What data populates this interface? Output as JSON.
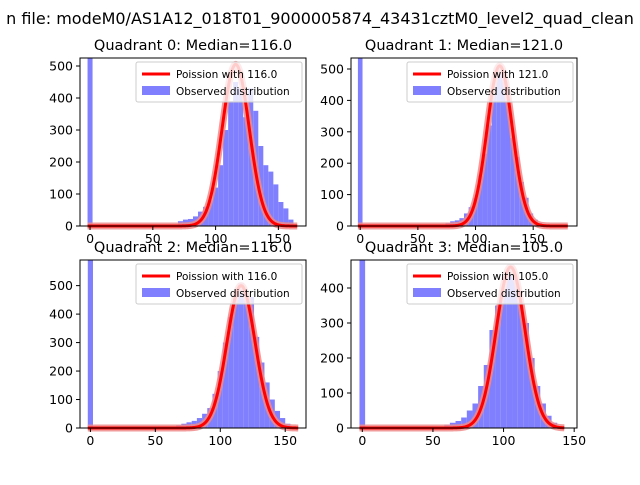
{
  "figure_title": "n file: modeM0/AS1A12_018T01_9000005874_43431cztM0_level2_quad_clean",
  "colors": {
    "hist": "#8080ff",
    "poisson": "#ff0000",
    "poisson_overlap": "#f08a8a"
  },
  "chart_data": [
    {
      "type": "bar",
      "title": "Quadrant 0: Median=116.0",
      "xlim": [
        -8,
        172
      ],
      "ylim": [
        0,
        525
      ],
      "xticks": [
        0,
        50,
        100,
        150
      ],
      "yticks": [
        0,
        100,
        200,
        300,
        400,
        500
      ],
      "legend_position": "top-right",
      "legend": [
        "Poission with 116.0",
        "Observed distribution"
      ],
      "bin_width": 4,
      "bins": [
        [
          -2,
          525
        ],
        [
          70,
          15
        ],
        [
          74,
          20
        ],
        [
          78,
          22
        ],
        [
          82,
          30
        ],
        [
          86,
          45
        ],
        [
          90,
          60
        ],
        [
          94,
          80
        ],
        [
          98,
          120
        ],
        [
          102,
          190
        ],
        [
          106,
          300
        ],
        [
          110,
          390
        ],
        [
          114,
          450
        ],
        [
          118,
          430
        ],
        [
          122,
          340
        ],
        [
          126,
          430
        ],
        [
          130,
          360
        ],
        [
          134,
          250
        ],
        [
          138,
          190
        ],
        [
          142,
          170
        ],
        [
          146,
          130
        ],
        [
          150,
          75
        ],
        [
          154,
          55
        ],
        [
          158,
          20
        ]
      ],
      "poisson_mean": 116.0,
      "poisson_peak": 505,
      "poisson_range": [
        -2,
        165
      ]
    },
    {
      "type": "bar",
      "title": "Quadrant 1: Median=121.0",
      "xlim": [
        -8,
        188
      ],
      "ylim": [
        0,
        535
      ],
      "xticks": [
        0,
        50,
        100,
        150
      ],
      "yticks": [
        0,
        100,
        200,
        300,
        400,
        500
      ],
      "legend_position": "top-right",
      "legend": [
        "Poission with 121.0",
        "Observed distribution"
      ],
      "bin_width": 4,
      "bins": [
        [
          -2,
          535
        ],
        [
          74,
          10
        ],
        [
          78,
          15
        ],
        [
          82,
          18
        ],
        [
          86,
          25
        ],
        [
          90,
          40
        ],
        [
          94,
          60
        ],
        [
          98,
          90
        ],
        [
          102,
          160
        ],
        [
          106,
          230
        ],
        [
          110,
          320
        ],
        [
          114,
          420
        ],
        [
          118,
          500
        ],
        [
          122,
          490
        ],
        [
          126,
          410
        ],
        [
          130,
          280
        ],
        [
          134,
          220
        ],
        [
          138,
          140
        ],
        [
          142,
          90
        ],
        [
          146,
          40
        ],
        [
          150,
          20
        ],
        [
          154,
          10
        ]
      ],
      "poisson_mean": 121.0,
      "poisson_peak": 510,
      "poisson_range": [
        -2,
        180
      ]
    },
    {
      "type": "bar",
      "title": "Quadrant 2: Median=116.0",
      "xlim": [
        -8,
        166
      ],
      "ylim": [
        0,
        590
      ],
      "xticks": [
        0,
        50,
        100,
        150
      ],
      "yticks": [
        0,
        100,
        200,
        300,
        400,
        500
      ],
      "legend_position": "top-right",
      "legend": [
        "Poission with 116.0",
        "Observed distribution"
      ],
      "bin_width": 4,
      "bins": [
        [
          -2,
          590
        ],
        [
          66,
          10
        ],
        [
          70,
          15
        ],
        [
          74,
          20
        ],
        [
          78,
          25
        ],
        [
          82,
          35
        ],
        [
          86,
          50
        ],
        [
          90,
          70
        ],
        [
          94,
          120
        ],
        [
          98,
          200
        ],
        [
          102,
          300
        ],
        [
          106,
          390
        ],
        [
          110,
          450
        ],
        [
          114,
          510
        ],
        [
          118,
          480
        ],
        [
          122,
          460
        ],
        [
          126,
          320
        ],
        [
          130,
          230
        ],
        [
          134,
          160
        ],
        [
          138,
          100
        ],
        [
          142,
          60
        ],
        [
          146,
          35
        ],
        [
          150,
          15
        ]
      ],
      "poisson_mean": 116.0,
      "poisson_peak": 500,
      "poisson_range": [
        -2,
        160
      ]
    },
    {
      "type": "bar",
      "title": "Quadrant 3: Median=105.0",
      "xlim": [
        -8,
        152
      ],
      "ylim": [
        0,
        480
      ],
      "xticks": [
        0,
        50,
        100,
        150
      ],
      "yticks": [
        0,
        100,
        200,
        300,
        400
      ],
      "legend_position": "top-right",
      "legend": [
        "Poission with 105.0",
        "Observed distribution"
      ],
      "bin_width": 4,
      "bins": [
        [
          -2,
          480
        ],
        [
          58,
          10
        ],
        [
          62,
          15
        ],
        [
          66,
          20
        ],
        [
          70,
          30
        ],
        [
          74,
          50
        ],
        [
          78,
          70
        ],
        [
          82,
          120
        ],
        [
          86,
          180
        ],
        [
          90,
          280
        ],
        [
          94,
          350
        ],
        [
          98,
          390
        ],
        [
          102,
          440
        ],
        [
          106,
          430
        ],
        [
          110,
          360
        ],
        [
          114,
          300
        ],
        [
          118,
          200
        ],
        [
          122,
          120
        ],
        [
          126,
          70
        ],
        [
          130,
          35
        ],
        [
          134,
          15
        ]
      ],
      "poisson_mean": 105.0,
      "poisson_peak": 460,
      "poisson_range": [
        -2,
        143
      ]
    }
  ]
}
